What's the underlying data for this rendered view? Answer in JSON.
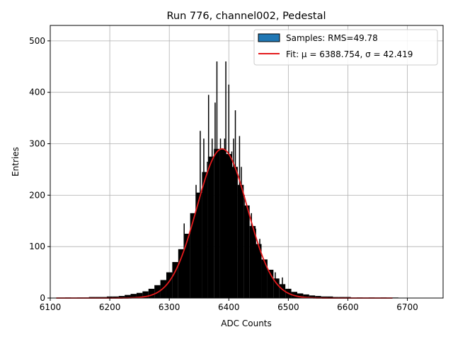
{
  "chart_data": {
    "type": "bar",
    "title": "Run 776, channel002, Pedestal",
    "xlabel": "ADC Counts",
    "ylabel": "Entries",
    "xlim": [
      6100,
      6760
    ],
    "ylim": [
      0,
      530
    ],
    "xticks": [
      6100,
      6200,
      6300,
      6400,
      6500,
      6600,
      6700
    ],
    "yticks": [
      0,
      100,
      200,
      300,
      400,
      500
    ],
    "grid": true,
    "legend_position": "top-right",
    "histogram": {
      "name": "Samples: RMS=49.78",
      "color": "#000000",
      "legend_color": "#1f77b4",
      "bins": [
        [
          6130,
          1
        ],
        [
          6150,
          1
        ],
        [
          6160,
          1
        ],
        [
          6170,
          2
        ],
        [
          6180,
          2
        ],
        [
          6190,
          2
        ],
        [
          6200,
          3
        ],
        [
          6210,
          3
        ],
        [
          6220,
          4
        ],
        [
          6230,
          6
        ],
        [
          6240,
          8
        ],
        [
          6250,
          10
        ],
        [
          6260,
          13
        ],
        [
          6270,
          18
        ],
        [
          6280,
          25
        ],
        [
          6290,
          35
        ],
        [
          6300,
          50
        ],
        [
          6310,
          70
        ],
        [
          6320,
          95
        ],
        [
          6330,
          125
        ],
        [
          6340,
          165
        ],
        [
          6350,
          205
        ],
        [
          6360,
          245
        ],
        [
          6370,
          275
        ],
        [
          6380,
          290
        ],
        [
          6390,
          290
        ],
        [
          6400,
          280
        ],
        [
          6410,
          255
        ],
        [
          6420,
          220
        ],
        [
          6430,
          180
        ],
        [
          6440,
          140
        ],
        [
          6450,
          105
        ],
        [
          6460,
          75
        ],
        [
          6470,
          55
        ],
        [
          6480,
          38
        ],
        [
          6490,
          27
        ],
        [
          6500,
          18
        ],
        [
          6510,
          12
        ],
        [
          6520,
          9
        ],
        [
          6530,
          7
        ],
        [
          6540,
          5
        ],
        [
          6550,
          4
        ],
        [
          6560,
          3
        ],
        [
          6570,
          3
        ],
        [
          6580,
          2
        ],
        [
          6590,
          2
        ],
        [
          6600,
          2
        ],
        [
          6620,
          1
        ],
        [
          6640,
          1
        ],
        [
          6660,
          1
        ],
        [
          6680,
          1
        ]
      ],
      "spikes": [
        [
          6318,
          93
        ],
        [
          6325,
          145
        ],
        [
          6345,
          220
        ],
        [
          6352,
          325
        ],
        [
          6358,
          310
        ],
        [
          6364,
          265
        ],
        [
          6366,
          395
        ],
        [
          6372,
          310
        ],
        [
          6377,
          380
        ],
        [
          6380,
          460
        ],
        [
          6386,
          310
        ],
        [
          6390,
          145
        ],
        [
          6393,
          310
        ],
        [
          6395,
          460
        ],
        [
          6400,
          415
        ],
        [
          6405,
          285
        ],
        [
          6408,
          310
        ],
        [
          6411,
          365
        ],
        [
          6418,
          315
        ],
        [
          6421,
          255
        ],
        [
          6426,
          200
        ],
        [
          6438,
          165
        ],
        [
          6445,
          135
        ],
        [
          6452,
          115
        ],
        [
          6478,
          50
        ],
        [
          6490,
          40
        ]
      ]
    },
    "series": [
      {
        "name": "Fit: μ = 6388.754, σ = 42.419",
        "type": "line",
        "color": "#e41a1c",
        "model": "gaussian",
        "mu": 6388.754,
        "sigma": 42.419,
        "amplitude": 290,
        "x_range": [
          6110,
          6675
        ]
      }
    ]
  }
}
